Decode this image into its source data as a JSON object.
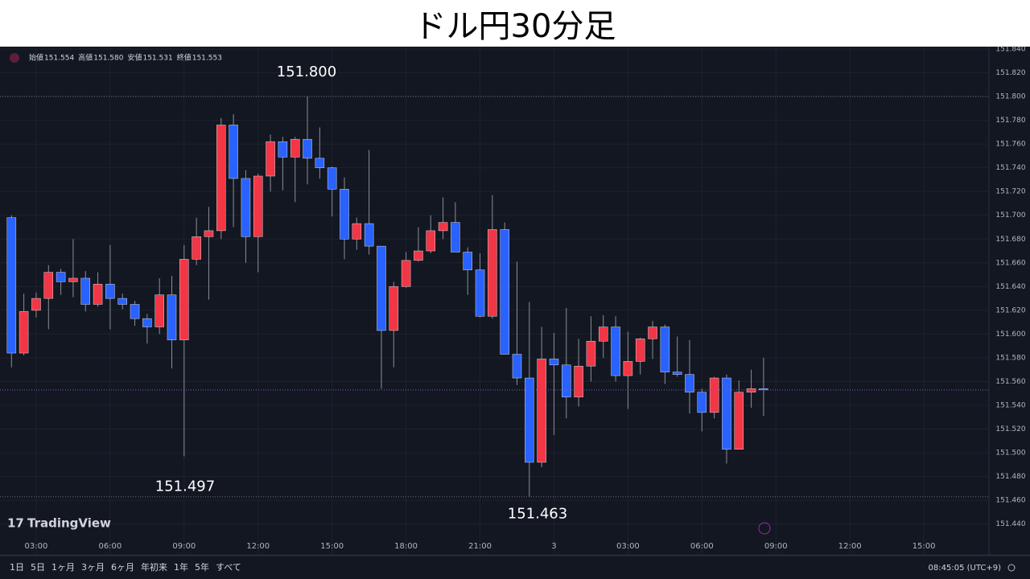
{
  "header": {
    "title": "ドル円30分足"
  },
  "chart_data": {
    "type": "candlestick",
    "ohlc_legend": [
      {
        "label": "始値",
        "value": "151.554"
      },
      {
        "label": "高値",
        "value": "151.580"
      },
      {
        "label": "安値",
        "value": "151.531"
      },
      {
        "label": "終値",
        "value": "151.553"
      }
    ],
    "x": [
      2,
      2.5,
      3,
      3.5,
      4,
      4.5,
      5,
      5.5,
      6,
      6.5,
      7,
      7.5,
      8,
      8.5,
      9,
      9.5,
      10,
      10.5,
      11,
      11.5,
      12,
      12.5,
      13,
      13.5,
      14,
      14.5,
      15,
      15.5,
      16,
      16.5,
      17,
      17.5,
      18,
      18.5,
      19,
      19.5,
      20,
      20.5,
      21,
      21.5,
      22,
      22.5,
      23,
      23.5,
      24,
      24.5,
      25,
      25.5,
      26,
      26.5,
      27,
      27.5,
      28,
      28.5,
      29,
      29.5,
      30,
      30.5,
      31,
      31.5,
      32,
      32.5
    ],
    "open": [
      151.698,
      151.584,
      151.62,
      151.63,
      151.652,
      151.644,
      151.647,
      151.625,
      151.642,
      151.63,
      151.625,
      151.613,
      151.606,
      151.633,
      151.595,
      151.663,
      151.682,
      151.687,
      151.776,
      151.731,
      151.682,
      151.733,
      151.762,
      151.749,
      151.764,
      151.748,
      151.74,
      151.722,
      151.68,
      151.693,
      151.674,
      151.603,
      151.64,
      151.662,
      151.67,
      151.687,
      151.694,
      151.669,
      151.654,
      151.615,
      151.688,
      151.583,
      151.563,
      151.492,
      151.579,
      151.574,
      151.547,
      151.573,
      151.594,
      151.606,
      151.565,
      151.577,
      151.596,
      151.606,
      151.568,
      151.566,
      151.551,
      151.534,
      151.563,
      151.503,
      151.551,
      151.554
    ],
    "high": [
      151.7,
      151.634,
      151.635,
      151.658,
      151.655,
      151.68,
      151.653,
      151.652,
      151.675,
      151.634,
      151.628,
      151.617,
      151.647,
      151.649,
      151.675,
      151.698,
      151.707,
      151.782,
      151.785,
      151.738,
      151.735,
      151.768,
      151.766,
      151.766,
      151.8,
      151.774,
      151.741,
      151.732,
      151.698,
      151.755,
      151.674,
      151.644,
      151.669,
      151.69,
      151.7,
      151.715,
      151.711,
      151.673,
      151.668,
      151.717,
      151.694,
      151.661,
      151.627,
      151.606,
      151.601,
      151.622,
      151.596,
      151.615,
      151.616,
      151.615,
      151.602,
      151.597,
      151.611,
      151.608,
      151.598,
      151.595,
      151.554,
      151.564,
      151.566,
      151.561,
      151.57,
      151.58
    ],
    "low": [
      151.572,
      151.582,
      151.614,
      151.604,
      151.633,
      151.631,
      151.619,
      151.623,
      151.604,
      151.621,
      151.607,
      151.592,
      151.6,
      151.571,
      151.497,
      151.658,
      151.629,
      151.68,
      151.69,
      151.66,
      151.652,
      151.72,
      151.721,
      151.711,
      151.726,
      151.731,
      151.699,
      151.663,
      151.671,
      151.667,
      151.554,
      151.572,
      151.639,
      151.661,
      151.668,
      151.68,
      151.669,
      151.633,
      151.614,
      151.613,
      151.583,
      151.557,
      151.463,
      151.488,
      151.515,
      151.529,
      151.539,
      151.56,
      151.58,
      151.56,
      151.537,
      151.566,
      151.579,
      151.558,
      151.564,
      151.533,
      151.518,
      151.529,
      151.491,
      151.503,
      151.538,
      151.531
    ],
    "close": [
      151.584,
      151.619,
      151.63,
      151.652,
      151.644,
      151.647,
      151.625,
      151.642,
      151.63,
      151.625,
      151.613,
      151.606,
      151.633,
      151.595,
      151.663,
      151.682,
      151.687,
      151.776,
      151.731,
      151.682,
      151.733,
      151.762,
      151.749,
      151.764,
      151.748,
      151.74,
      151.722,
      151.68,
      151.693,
      151.674,
      151.603,
      151.64,
      151.662,
      151.67,
      151.687,
      151.694,
      151.669,
      151.654,
      151.615,
      151.688,
      151.583,
      151.563,
      151.492,
      151.579,
      151.574,
      151.547,
      151.573,
      151.594,
      151.606,
      151.565,
      151.577,
      151.596,
      151.606,
      151.568,
      151.566,
      151.551,
      151.534,
      151.563,
      151.503,
      151.551,
      151.554,
      151.553
    ],
    "up_color": "#f23645",
    "down_color": "#2962ff",
    "xlim": [
      1.533,
      41.64
    ],
    "xticks": [
      {
        "value": 3,
        "label": "03:00"
      },
      {
        "value": 6,
        "label": "06:00"
      },
      {
        "value": 9,
        "label": "09:00"
      },
      {
        "value": 12,
        "label": "12:00"
      },
      {
        "value": 15,
        "label": "15:00"
      },
      {
        "value": 18,
        "label": "18:00"
      },
      {
        "value": 21,
        "label": "21:00"
      },
      {
        "value": 24,
        "label": "3"
      },
      {
        "value": 27,
        "label": "03:00"
      },
      {
        "value": 30,
        "label": "06:00"
      },
      {
        "value": 33,
        "label": "09:00"
      },
      {
        "value": 36,
        "label": "12:00"
      },
      {
        "value": 39,
        "label": "15:00"
      }
    ],
    "ylim": [
      151.431,
      151.842
    ],
    "yticks": [
      {
        "value": 151.44,
        "label": "151.440"
      },
      {
        "value": 151.46,
        "label": "151.460"
      },
      {
        "value": 151.48,
        "label": "151.480"
      },
      {
        "value": 151.5,
        "label": "151.500"
      },
      {
        "value": 151.52,
        "label": "151.520"
      },
      {
        "value": 151.54,
        "label": "151.540"
      },
      {
        "value": 151.56,
        "label": "151.560"
      },
      {
        "value": 151.58,
        "label": "151.580"
      },
      {
        "value": 151.6,
        "label": "151.600"
      },
      {
        "value": 151.62,
        "label": "151.620"
      },
      {
        "value": 151.64,
        "label": "151.640"
      },
      {
        "value": 151.66,
        "label": "151.660"
      },
      {
        "value": 151.68,
        "label": "151.680"
      },
      {
        "value": 151.7,
        "label": "151.700"
      },
      {
        "value": 151.72,
        "label": "151.720"
      },
      {
        "value": 151.74,
        "label": "151.740"
      },
      {
        "value": 151.76,
        "label": "151.760"
      },
      {
        "value": 151.78,
        "label": "151.780"
      },
      {
        "value": 151.8,
        "label": "151.800"
      },
      {
        "value": 151.82,
        "label": "151.820"
      },
      {
        "value": 151.84,
        "label": "151.840"
      }
    ],
    "grid": true,
    "annotations": [
      {
        "value": 151.8,
        "label": "151.800"
      },
      {
        "value": 151.497,
        "label": "151.497"
      },
      {
        "value": 151.463,
        "label": "151.463"
      }
    ],
    "brand": "TradingView"
  },
  "toolbar": {
    "ranges": [
      "1日",
      "5日",
      "1ヶ月",
      "3ヶ月",
      "6ヶ月",
      "年初来",
      "1年",
      "5年",
      "すべて"
    ],
    "clock": "08:45:05 (UTC+9)"
  }
}
